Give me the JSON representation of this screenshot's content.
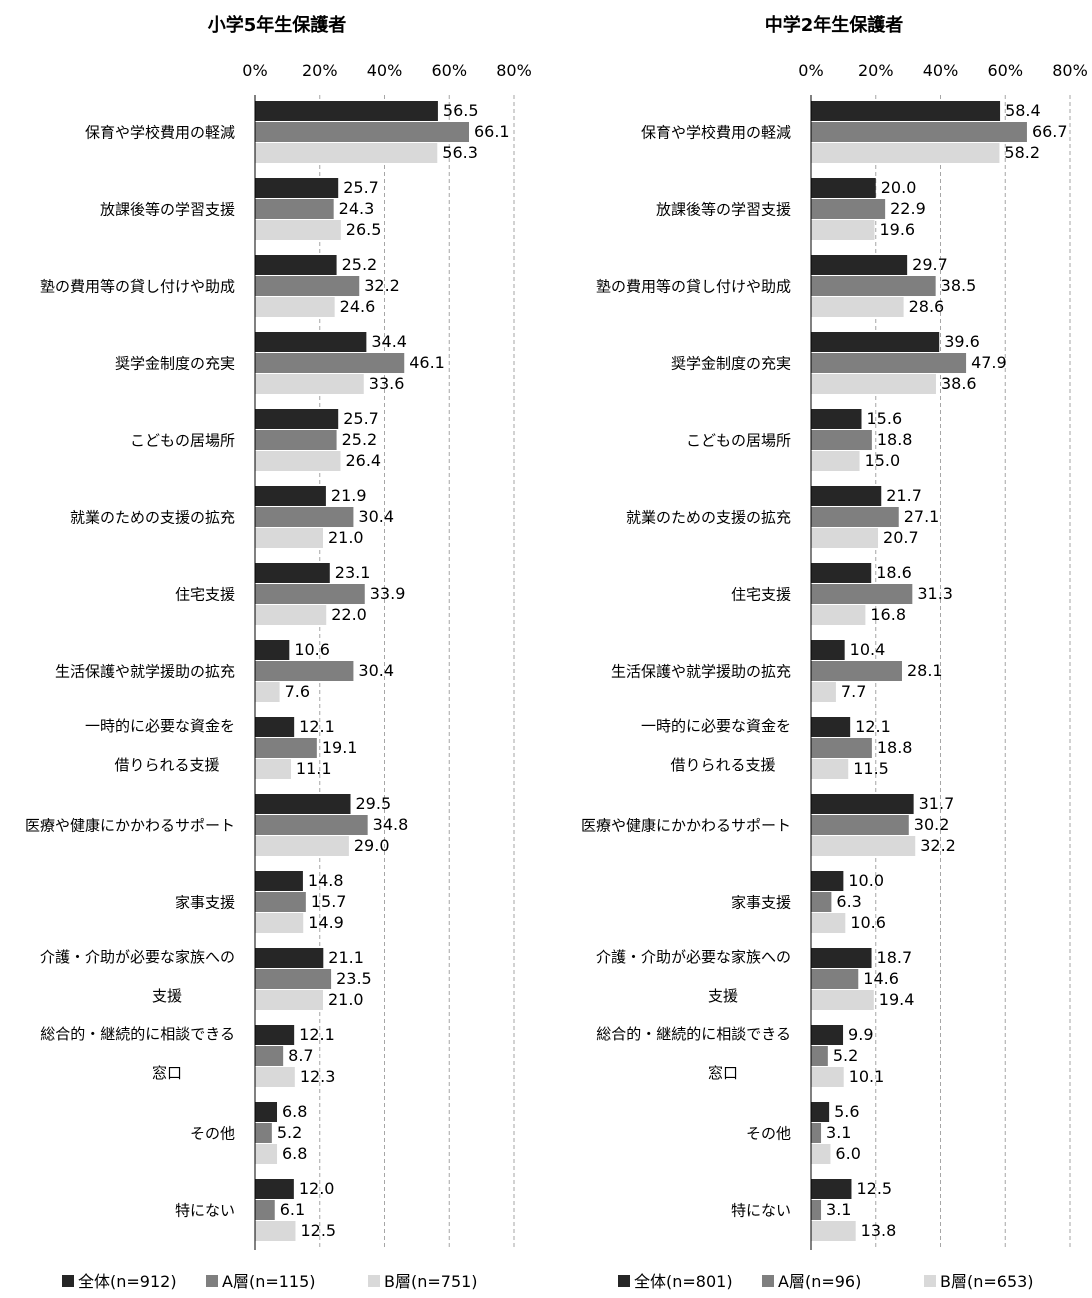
{
  "colors": {
    "series": [
      "#262626",
      "#7f7f7f",
      "#d9d9d9"
    ],
    "axis": "#000000",
    "grid": "#a6a6a6",
    "background": "#ffffff"
  },
  "chart_data": [
    {
      "type": "bar",
      "orientation": "horizontal",
      "title": "小学5年生保護者",
      "xlim": [
        0,
        80
      ],
      "x_ticks": [
        "0%",
        "20%",
        "40%",
        "60%",
        "80%"
      ],
      "grid": "vertical dashed",
      "legend_position": "bottom",
      "categories": [
        [
          "保育や学校費用の軽減"
        ],
        [
          "放課後等の学習支援"
        ],
        [
          "塾の費用等の貸し付けや助成"
        ],
        [
          "奨学金制度の充実"
        ],
        [
          "こどもの居場所"
        ],
        [
          "就業のための支援の拡充"
        ],
        [
          "住宅支援"
        ],
        [
          "生活保護や就学援助の拡充"
        ],
        [
          "一時的に必要な資金を",
          "借りられる支援"
        ],
        [
          "医療や健康にかかわるサポート"
        ],
        [
          "家事支援"
        ],
        [
          "介護・介助が必要な家族への",
          "支援"
        ],
        [
          "総合的・継続的に相談できる",
          "窓口"
        ],
        [
          "その他"
        ],
        [
          "特にない"
        ]
      ],
      "series": [
        {
          "name": "全体(n=912)",
          "values": [
            56.5,
            25.7,
            25.2,
            34.4,
            25.7,
            21.9,
            23.1,
            10.6,
            12.1,
            29.5,
            14.8,
            21.1,
            12.1,
            6.8,
            12.0
          ]
        },
        {
          "name": "A層(n=115)",
          "values": [
            66.1,
            24.3,
            32.2,
            46.1,
            25.2,
            30.4,
            33.9,
            30.4,
            19.1,
            34.8,
            15.7,
            23.5,
            8.7,
            5.2,
            6.1
          ]
        },
        {
          "name": "B層(n=751)",
          "values": [
            56.3,
            26.5,
            24.6,
            33.6,
            26.4,
            21.0,
            22.0,
            7.6,
            11.1,
            29.0,
            14.9,
            21.0,
            12.3,
            6.8,
            12.5
          ]
        }
      ]
    },
    {
      "type": "bar",
      "orientation": "horizontal",
      "title": "中学2年生保護者",
      "xlim": [
        0,
        80
      ],
      "x_ticks": [
        "0%",
        "20%",
        "40%",
        "60%",
        "80%"
      ],
      "grid": "vertical dashed",
      "legend_position": "bottom",
      "categories": [
        [
          "保育や学校費用の軽減"
        ],
        [
          "放課後等の学習支援"
        ],
        [
          "塾の費用等の貸し付けや助成"
        ],
        [
          "奨学金制度の充実"
        ],
        [
          "こどもの居場所"
        ],
        [
          "就業のための支援の拡充"
        ],
        [
          "住宅支援"
        ],
        [
          "生活保護や就学援助の拡充"
        ],
        [
          "一時的に必要な資金を",
          "借りられる支援"
        ],
        [
          "医療や健康にかかわるサポート"
        ],
        [
          "家事支援"
        ],
        [
          "介護・介助が必要な家族への",
          "支援"
        ],
        [
          "総合的・継続的に相談できる",
          "窓口"
        ],
        [
          "その他"
        ],
        [
          "特にない"
        ]
      ],
      "series": [
        {
          "name": "全体(n=801)",
          "values": [
            58.4,
            20.0,
            29.7,
            39.6,
            15.6,
            21.7,
            18.6,
            10.4,
            12.1,
            31.7,
            10.0,
            18.7,
            9.9,
            5.6,
            12.5
          ]
        },
        {
          "name": "A層(n=96)",
          "values": [
            66.7,
            22.9,
            38.5,
            47.9,
            18.8,
            27.1,
            31.3,
            28.1,
            18.8,
            30.2,
            6.3,
            14.6,
            5.2,
            3.1,
            3.1
          ]
        },
        {
          "name": "B層(n=653)",
          "values": [
            58.2,
            19.6,
            28.6,
            38.6,
            15.0,
            20.7,
            16.8,
            7.7,
            11.5,
            32.2,
            10.6,
            19.4,
            10.1,
            6.0,
            13.8
          ]
        }
      ]
    }
  ]
}
